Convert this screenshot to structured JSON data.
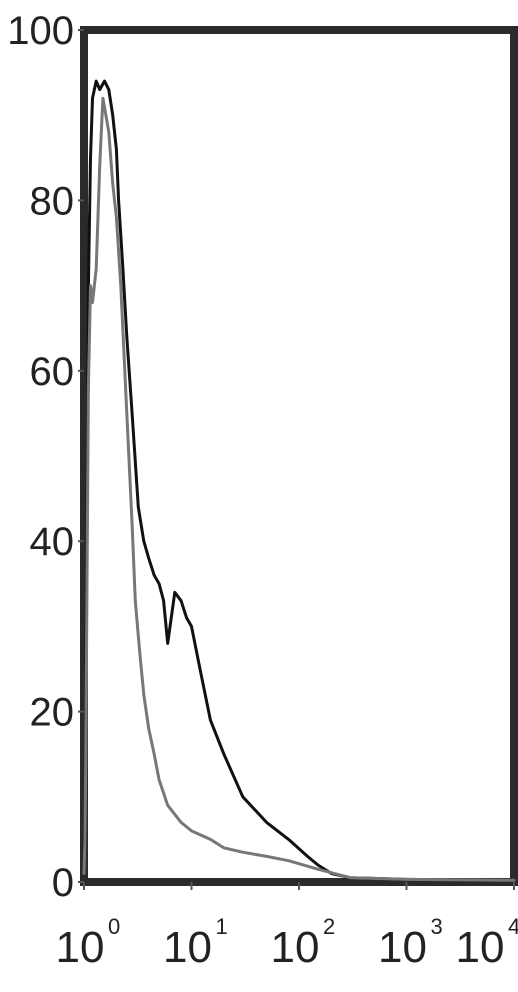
{
  "chart_data": {
    "type": "line",
    "x_scale": "log",
    "xlim": [
      1,
      10000
    ],
    "ylim": [
      0,
      100
    ],
    "grid": false,
    "y_ticks": [
      {
        "value": 0,
        "label": "0"
      },
      {
        "value": 20,
        "label": "20"
      },
      {
        "value": 40,
        "label": "40"
      },
      {
        "value": 60,
        "label": "60"
      },
      {
        "value": 80,
        "label": "80"
      },
      {
        "value": 100,
        "label": "100"
      }
    ],
    "x_ticks": [
      {
        "value": 1,
        "base": "10",
        "exp": "0"
      },
      {
        "value": 10,
        "base": "10",
        "exp": "1"
      },
      {
        "value": 100,
        "base": "10",
        "exp": "2"
      },
      {
        "value": 1000,
        "base": "10",
        "exp": "3"
      },
      {
        "value": 10000,
        "base": "10",
        "exp": "4"
      }
    ],
    "series": [
      {
        "color": "#111111",
        "x": [
          1.0,
          1.02,
          1.04,
          1.06,
          1.08,
          1.1,
          1.15,
          1.2,
          1.3,
          1.4,
          1.55,
          1.7,
          1.85,
          2.0,
          2.1,
          2.3,
          2.5,
          2.8,
          3.2,
          3.6,
          4.0,
          4.5,
          5.0,
          5.5,
          6.0,
          7.0,
          8.0,
          9.0,
          10.0,
          12.0,
          15.0,
          20.0,
          30.0,
          50.0,
          80.0,
          120.0,
          150.0,
          200.0,
          300.0,
          1000.0,
          10000.0
        ],
        "y": [
          2,
          8,
          20,
          38,
          55,
          70,
          85,
          92,
          94,
          93,
          94,
          93,
          90,
          86,
          80,
          72,
          64,
          55,
          44,
          40,
          38,
          36,
          35,
          33,
          28,
          34,
          33,
          31,
          30,
          25,
          19,
          15,
          10,
          7,
          5,
          3,
          2,
          1,
          0.5,
          0.3,
          0.2
        ]
      },
      {
        "color": "#777777",
        "x": [
          1.0,
          1.02,
          1.04,
          1.06,
          1.08,
          1.1,
          1.15,
          1.2,
          1.3,
          1.4,
          1.5,
          1.6,
          1.7,
          1.85,
          2.0,
          2.2,
          2.5,
          2.8,
          3.0,
          3.3,
          3.6,
          4.0,
          4.5,
          5.0,
          6.0,
          8.0,
          10.0,
          15.0,
          20.0,
          30.0,
          50.0,
          80.0,
          150.0,
          300.0,
          1000.0,
          10000.0
        ],
        "y": [
          1,
          5,
          15,
          30,
          45,
          58,
          70,
          68,
          72,
          84,
          92,
          90,
          88,
          82,
          78,
          70,
          55,
          42,
          33,
          27,
          22,
          18,
          15,
          12,
          9,
          7,
          6,
          5,
          4,
          3.5,
          3,
          2.5,
          1.5,
          0.5,
          0.3,
          0.2
        ]
      }
    ]
  }
}
